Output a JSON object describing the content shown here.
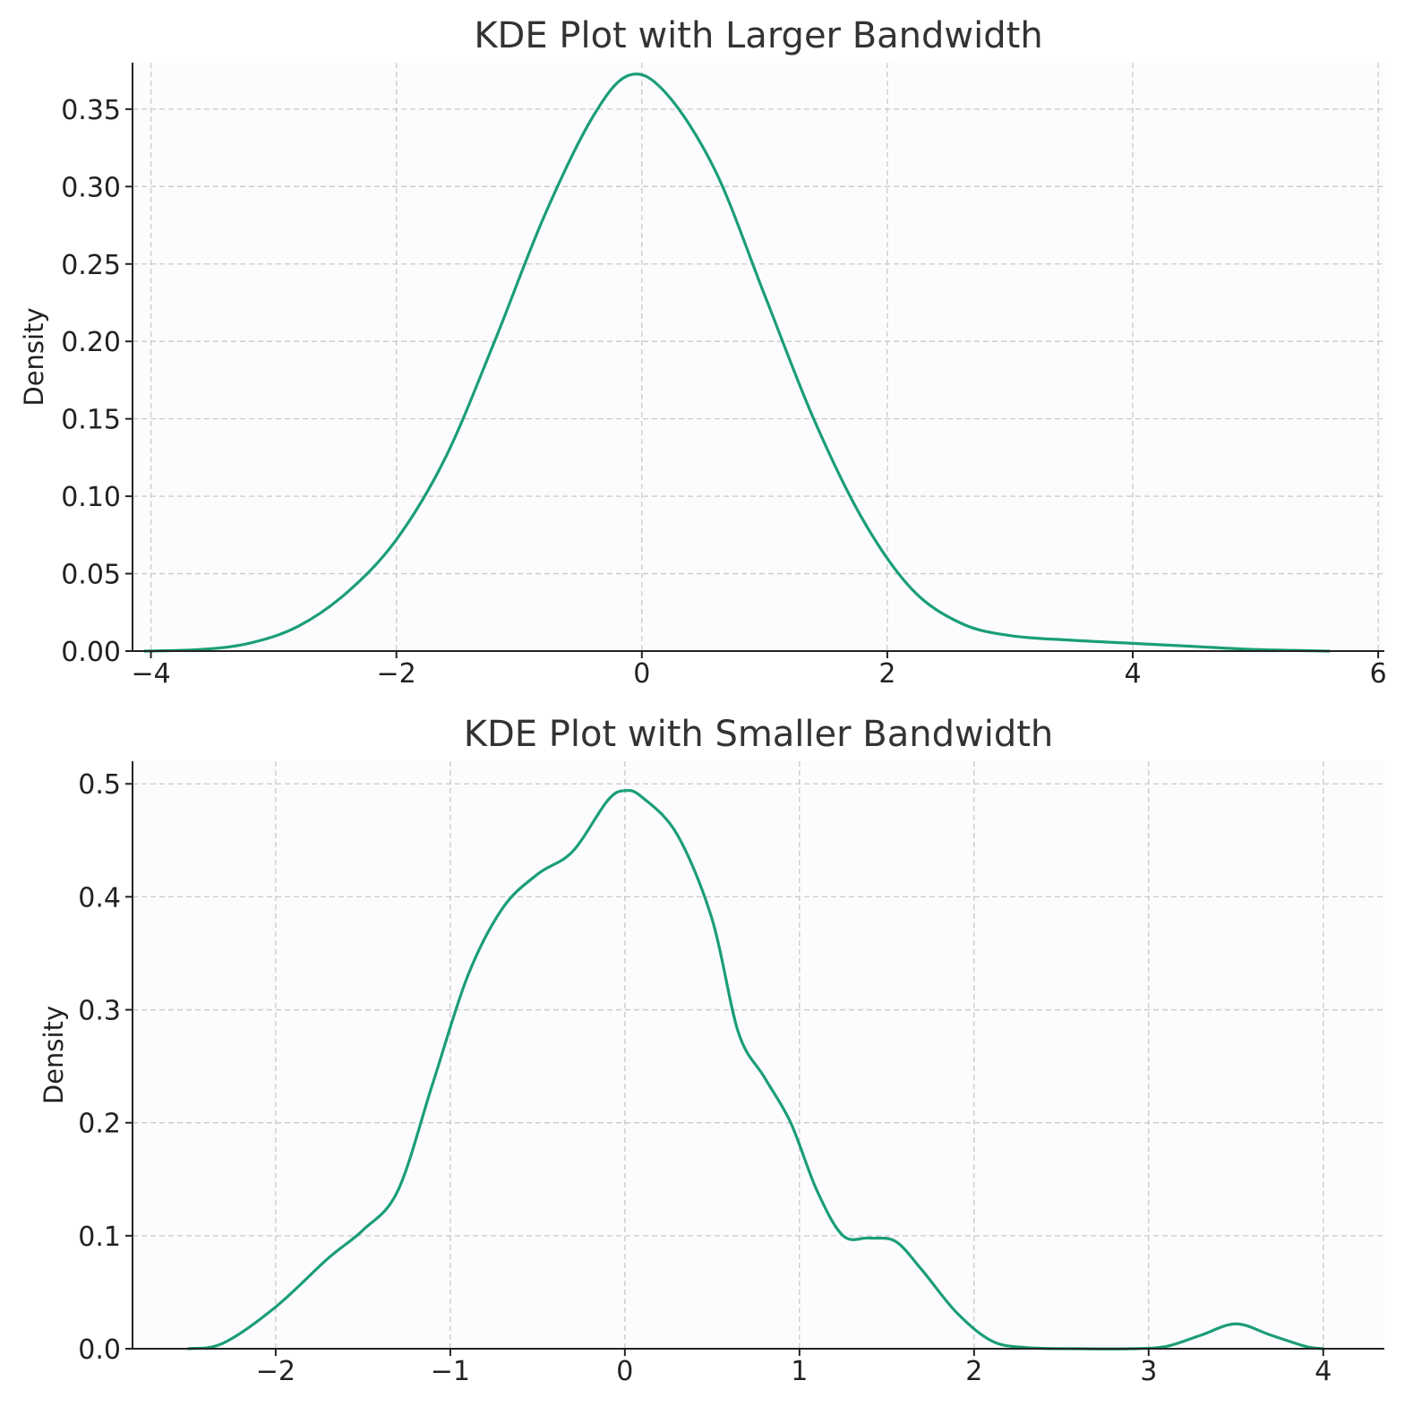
{
  "chart_data": [
    {
      "type": "line",
      "title": "KDE Plot with Larger Bandwidth",
      "xlabel": "",
      "ylabel": "Density",
      "xlim": [
        -4.15,
        6.05
      ],
      "ylim": [
        0,
        0.38
      ],
      "xticks": [
        -4,
        -2,
        0,
        2,
        4,
        6
      ],
      "xtick_labels": [
        "−4",
        "−2",
        "0",
        "2",
        "4",
        "6"
      ],
      "yticks": [
        0,
        0.05,
        0.1,
        0.15,
        0.2,
        0.25,
        0.3,
        0.35
      ],
      "ytick_labels": [
        "0.00",
        "0.05",
        "0.10",
        "0.15",
        "0.20",
        "0.25",
        "0.30",
        "0.35"
      ],
      "grid": true,
      "color": "#1b9e77",
      "series": [
        {
          "x": [
            -4.05,
            -3.6,
            -3.2,
            -2.8,
            -2.4,
            -2.0,
            -1.6,
            -1.2,
            -0.8,
            -0.4,
            -0.1,
            0.2,
            0.6,
            1.0,
            1.4,
            1.8,
            2.2,
            2.6,
            3.0,
            3.5,
            4.0,
            4.5,
            5.0,
            5.6
          ],
          "y": [
            0.0,
            0.001,
            0.005,
            0.016,
            0.038,
            0.072,
            0.125,
            0.2,
            0.28,
            0.345,
            0.372,
            0.36,
            0.31,
            0.23,
            0.15,
            0.085,
            0.04,
            0.018,
            0.01,
            0.007,
            0.005,
            0.003,
            0.001,
            0.0
          ]
        }
      ]
    },
    {
      "type": "line",
      "title": "KDE Plot with Smaller Bandwidth",
      "xlabel": "",
      "ylabel": "Density",
      "xlim": [
        -2.82,
        4.35
      ],
      "ylim": [
        0,
        0.52
      ],
      "xticks": [
        -2,
        -1,
        0,
        1,
        2,
        3,
        4
      ],
      "xtick_labels": [
        "−2",
        "−1",
        "0",
        "1",
        "2",
        "3",
        "4"
      ],
      "yticks": [
        0,
        0.1,
        0.2,
        0.3,
        0.4,
        0.5
      ],
      "ytick_labels": [
        "0.0",
        "0.1",
        "0.2",
        "0.3",
        "0.4",
        "0.5"
      ],
      "grid": true,
      "color": "#1b9e77",
      "series": [
        {
          "x": [
            -2.5,
            -2.3,
            -2.0,
            -1.7,
            -1.5,
            -1.3,
            -1.1,
            -0.9,
            -0.7,
            -0.5,
            -0.3,
            -0.1,
            0.0,
            0.1,
            0.3,
            0.5,
            0.65,
            0.8,
            0.95,
            1.1,
            1.25,
            1.4,
            1.55,
            1.7,
            1.9,
            2.1,
            2.3,
            2.6,
            2.9,
            3.1,
            3.3,
            3.5,
            3.7,
            3.9,
            4.0
          ],
          "y": [
            0.0,
            0.005,
            0.037,
            0.08,
            0.105,
            0.14,
            0.235,
            0.33,
            0.39,
            0.42,
            0.44,
            0.485,
            0.494,
            0.488,
            0.455,
            0.38,
            0.28,
            0.24,
            0.2,
            0.14,
            0.1,
            0.098,
            0.095,
            0.07,
            0.032,
            0.007,
            0.001,
            0.0,
            0.0,
            0.002,
            0.012,
            0.022,
            0.012,
            0.002,
            0.0
          ]
        }
      ]
    }
  ]
}
